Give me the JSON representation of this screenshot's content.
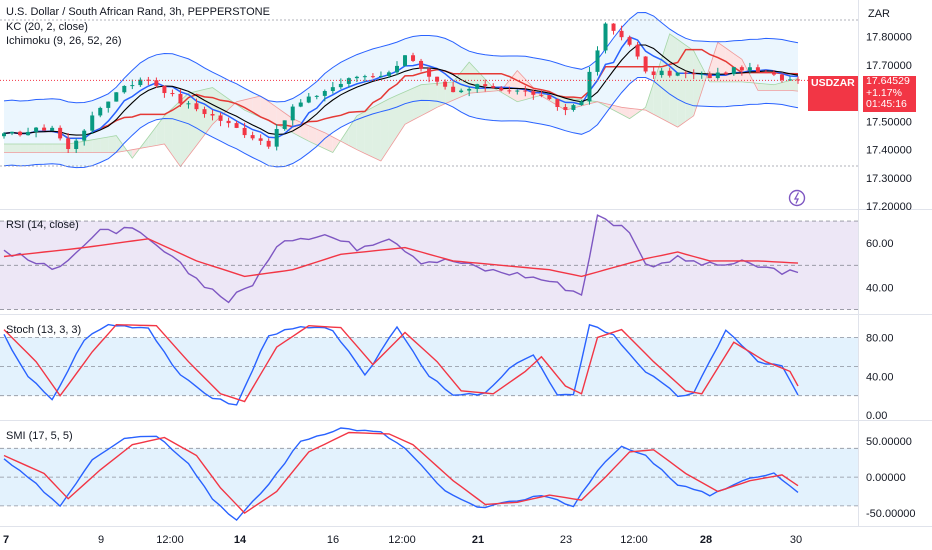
{
  "header": {
    "title": "U.S. Dollar / South African Rand, 3h, PEPPERSTONE",
    "kc_label": "KC (20, 2, close)",
    "ichimoku_label": "Ichimoku (9, 26, 52, 26)",
    "currency": "ZAR"
  },
  "price_badge": {
    "symbol": "USDZAR",
    "price": "17.64529",
    "change": "+1.17%",
    "countdown": "01:45:16"
  },
  "panes": {
    "rsi_label": "RSI (14, close)",
    "stoch_label": "Stoch (13, 3, 3)",
    "smi_label": "SMI (17, 5, 5)"
  },
  "colors": {
    "up": "#089981",
    "down": "#f23645",
    "kc_band": "#2962ff",
    "kc_fill": "#e3f2fd",
    "ich_conversion": "#2962ff",
    "ich_base": "#e53935",
    "ich_cloud_up": "#dff0e3",
    "ich_cloud_down": "#fde3e3",
    "kc_basis": "#000000",
    "rsi_line": "#7e57c2",
    "rsi_ma": "#f23645",
    "rsi_band": "#ede7f6",
    "stoch_k": "#2962ff",
    "stoch_d": "#f23645",
    "osc_band": "#e3f2fd"
  },
  "chart_data": [
    {
      "type": "candlestick",
      "title": "U.S. Dollar / South African Rand, 3h, PEPPERSTONE",
      "y_ticks": [
        "17.80000",
        "17.70000",
        "17.60000",
        "17.50000",
        "17.40000",
        "17.30000",
        "17.20000"
      ],
      "ylim": [
        17.19,
        17.93
      ],
      "x_ticks": [
        "7",
        "9",
        "12:00",
        "14",
        "16",
        "12:00",
        "21",
        "23",
        "12:00",
        "28",
        "30"
      ],
      "overlays": [
        "Keltner Channel upper/basis/lower",
        "Ichimoku conversion, base and cloud"
      ],
      "last_price": 17.64529,
      "approx_path": [
        [
          0,
          17.45
        ],
        [
          6,
          17.48
        ],
        [
          8,
          17.4
        ],
        [
          12,
          17.55
        ],
        [
          15,
          17.63
        ],
        [
          18,
          17.65
        ],
        [
          22,
          17.57
        ],
        [
          26,
          17.52
        ],
        [
          30,
          17.46
        ],
        [
          33,
          17.42
        ],
        [
          36,
          17.55
        ],
        [
          40,
          17.61
        ],
        [
          44,
          17.66
        ],
        [
          48,
          17.67
        ],
        [
          50,
          17.74
        ],
        [
          53,
          17.65
        ],
        [
          56,
          17.6
        ],
        [
          60,
          17.63
        ],
        [
          63,
          17.61
        ],
        [
          66,
          17.6
        ],
        [
          70,
          17.54
        ],
        [
          72,
          17.58
        ],
        [
          75,
          17.84
        ],
        [
          78,
          17.78
        ],
        [
          80,
          17.67
        ],
        [
          84,
          17.67
        ],
        [
          88,
          17.66
        ],
        [
          92,
          17.69
        ],
        [
          96,
          17.66
        ],
        [
          99,
          17.645
        ]
      ]
    },
    {
      "type": "line",
      "title": "RSI (14, close)",
      "y_ticks": [
        "60.00",
        "40.00"
      ],
      "ylim": [
        28,
        75
      ],
      "series": [
        {
          "name": "RSI",
          "approx_path": [
            [
              0,
              57
            ],
            [
              6,
              48
            ],
            [
              12,
              65
            ],
            [
              16,
              66
            ],
            [
              20,
              56
            ],
            [
              24,
              44
            ],
            [
              28,
              34
            ],
            [
              31,
              42
            ],
            [
              35,
              62
            ],
            [
              40,
              64
            ],
            [
              44,
              58
            ],
            [
              48,
              63
            ],
            [
              52,
              52
            ],
            [
              56,
              52
            ],
            [
              60,
              48
            ],
            [
              64,
              46
            ],
            [
              68,
              43
            ],
            [
              72,
              37
            ],
            [
              74,
              72
            ],
            [
              78,
              66
            ],
            [
              80,
              50
            ],
            [
              84,
              53
            ],
            [
              88,
              50
            ],
            [
              92,
              51
            ],
            [
              96,
              48
            ],
            [
              99,
              46
            ]
          ]
        },
        {
          "name": "RSI-based MA",
          "approx_path": [
            [
              0,
              54
            ],
            [
              10,
              58
            ],
            [
              18,
              62
            ],
            [
              24,
              52
            ],
            [
              30,
              45
            ],
            [
              36,
              48
            ],
            [
              42,
              55
            ],
            [
              50,
              58
            ],
            [
              56,
              52
            ],
            [
              62,
              50
            ],
            [
              68,
              48
            ],
            [
              72,
              45
            ],
            [
              76,
              49
            ],
            [
              80,
              53
            ],
            [
              84,
              56
            ],
            [
              88,
              52
            ],
            [
              94,
              52
            ],
            [
              99,
              51
            ]
          ]
        }
      ]
    },
    {
      "type": "line",
      "title": "Stoch (13, 3, 3)",
      "y_ticks": [
        "80.00",
        "40.00",
        "0.00"
      ],
      "ylim": [
        -5,
        103
      ],
      "series": [
        {
          "name": "%K",
          "approx_path": [
            [
              0,
              82
            ],
            [
              3,
              40
            ],
            [
              6,
              15
            ],
            [
              10,
              78
            ],
            [
              13,
              93
            ],
            [
              18,
              90
            ],
            [
              22,
              40
            ],
            [
              26,
              18
            ],
            [
              29,
              10
            ],
            [
              33,
              83
            ],
            [
              37,
              90
            ],
            [
              41,
              88
            ],
            [
              45,
              40
            ],
            [
              49,
              92
            ],
            [
              53,
              40
            ],
            [
              56,
              20
            ],
            [
              60,
              22
            ],
            [
              64,
              55
            ],
            [
              66,
              62
            ],
            [
              69,
              20
            ],
            [
              71,
              20
            ],
            [
              73,
              94
            ],
            [
              76,
              82
            ],
            [
              80,
              45
            ],
            [
              84,
              20
            ],
            [
              86,
              22
            ],
            [
              90,
              88
            ],
            [
              94,
              55
            ],
            [
              97,
              50
            ],
            [
              99,
              20
            ]
          ]
        },
        {
          "name": "%D",
          "approx_path": [
            [
              0,
              88
            ],
            [
              4,
              55
            ],
            [
              7,
              20
            ],
            [
              11,
              65
            ],
            [
              14,
              93
            ],
            [
              19,
              92
            ],
            [
              23,
              55
            ],
            [
              27,
              22
            ],
            [
              30,
              14
            ],
            [
              34,
              70
            ],
            [
              38,
              92
            ],
            [
              42,
              90
            ],
            [
              46,
              52
            ],
            [
              50,
              85
            ],
            [
              54,
              55
            ],
            [
              57,
              25
            ],
            [
              61,
              22
            ],
            [
              65,
              45
            ],
            [
              67,
              60
            ],
            [
              70,
              30
            ],
            [
              72,
              22
            ],
            [
              74,
              80
            ],
            [
              77,
              88
            ],
            [
              81,
              55
            ],
            [
              85,
              25
            ],
            [
              87,
              22
            ],
            [
              91,
              75
            ],
            [
              95,
              55
            ],
            [
              98,
              45
            ],
            [
              99,
              30
            ]
          ]
        }
      ]
    },
    {
      "type": "line",
      "title": "SMI (17, 5, 5)",
      "y_ticks": [
        "50.00000",
        "0.00000",
        "-50.00000"
      ],
      "ylim": [
        -68,
        78
      ],
      "series": [
        {
          "name": "SMI",
          "approx_path": [
            [
              0,
              25
            ],
            [
              4,
              -10
            ],
            [
              7,
              -40
            ],
            [
              11,
              25
            ],
            [
              15,
              55
            ],
            [
              19,
              58
            ],
            [
              23,
              20
            ],
            [
              26,
              -30
            ],
            [
              29,
              -60
            ],
            [
              33,
              -10
            ],
            [
              37,
              50
            ],
            [
              42,
              68
            ],
            [
              47,
              62
            ],
            [
              50,
              40
            ],
            [
              55,
              -20
            ],
            [
              59,
              -43
            ],
            [
              63,
              -35
            ],
            [
              67,
              -25
            ],
            [
              71,
              -40
            ],
            [
              74,
              10
            ],
            [
              77,
              42
            ],
            [
              80,
              30
            ],
            [
              84,
              -10
            ],
            [
              88,
              -25
            ],
            [
              92,
              -5
            ],
            [
              96,
              5
            ],
            [
              99,
              -20
            ]
          ]
        },
        {
          "name": "Signal",
          "approx_path": [
            [
              0,
              30
            ],
            [
              5,
              5
            ],
            [
              8,
              -30
            ],
            [
              12,
              10
            ],
            [
              16,
              45
            ],
            [
              20,
              55
            ],
            [
              24,
              30
            ],
            [
              27,
              -15
            ],
            [
              30,
              -50
            ],
            [
              34,
              -20
            ],
            [
              38,
              35
            ],
            [
              43,
              62
            ],
            [
              48,
              60
            ],
            [
              51,
              45
            ],
            [
              56,
              -5
            ],
            [
              60,
              -38
            ],
            [
              64,
              -35
            ],
            [
              68,
              -25
            ],
            [
              72,
              -32
            ],
            [
              75,
              0
            ],
            [
              78,
              35
            ],
            [
              81,
              38
            ],
            [
              85,
              5
            ],
            [
              89,
              -20
            ],
            [
              93,
              -5
            ],
            [
              97,
              3
            ],
            [
              99,
              -12
            ]
          ]
        }
      ]
    }
  ]
}
